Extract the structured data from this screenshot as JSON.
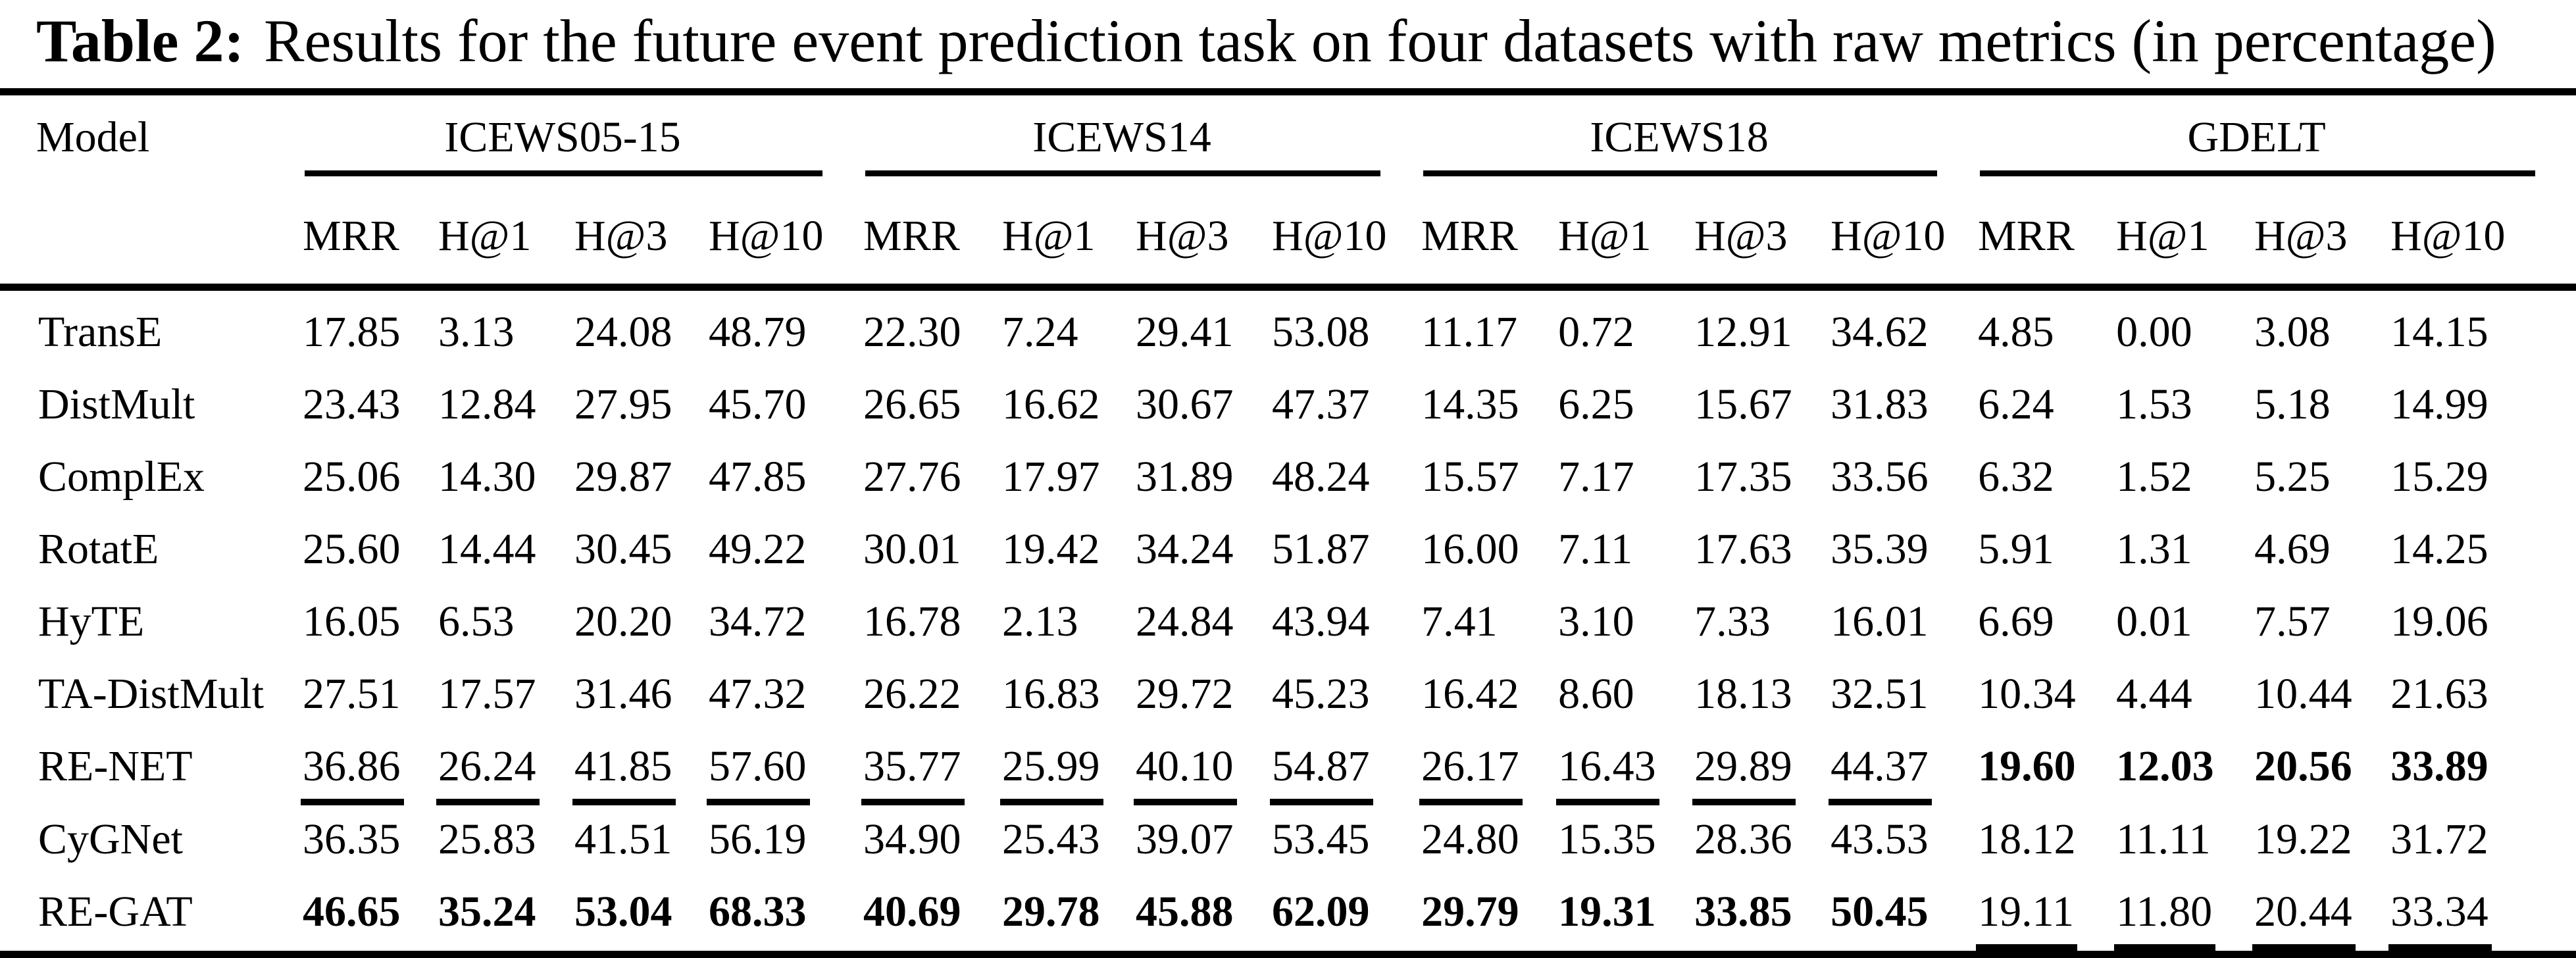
{
  "caption": {
    "label": "Table 2:",
    "text": "Results for the future event prediction task on four datasets with raw metrics (in percentage)"
  },
  "table": {
    "model_header": "Model",
    "groups": [
      "ICEWS05-15",
      "ICEWS14",
      "ICEWS18",
      "GDELT"
    ],
    "metrics": [
      "MRR",
      "H@1",
      "H@3",
      "H@10"
    ],
    "rows": [
      {
        "model": "TransE",
        "values": [
          "17.85",
          "3.13",
          "24.08",
          "48.79",
          "22.30",
          "7.24",
          "29.41",
          "53.08",
          "11.17",
          "0.72",
          "12.91",
          "34.62",
          "4.85",
          "0.00",
          "3.08",
          "14.15"
        ]
      },
      {
        "model": "DistMult",
        "values": [
          "23.43",
          "12.84",
          "27.95",
          "45.70",
          "26.65",
          "16.62",
          "30.67",
          "47.37",
          "14.35",
          "6.25",
          "15.67",
          "31.83",
          "6.24",
          "1.53",
          "5.18",
          "14.99"
        ]
      },
      {
        "model": "ComplEx",
        "values": [
          "25.06",
          "14.30",
          "29.87",
          "47.85",
          "27.76",
          "17.97",
          "31.89",
          "48.24",
          "15.57",
          "7.17",
          "17.35",
          "33.56",
          "6.32",
          "1.52",
          "5.25",
          "15.29"
        ]
      },
      {
        "model": "RotatE",
        "values": [
          "25.60",
          "14.44",
          "30.45",
          "49.22",
          "30.01",
          "19.42",
          "34.24",
          "51.87",
          "16.00",
          "7.11",
          "17.63",
          "35.39",
          "5.91",
          "1.31",
          "4.69",
          "14.25"
        ]
      },
      {
        "model": "HyTE",
        "values": [
          "16.05",
          "6.53",
          "20.20",
          "34.72",
          "16.78",
          "2.13",
          "24.84",
          "43.94",
          "7.41",
          "3.10",
          "7.33",
          "16.01",
          "6.69",
          "0.01",
          "7.57",
          "19.06"
        ]
      },
      {
        "model": "TA-DistMult",
        "values": [
          "27.51",
          "17.57",
          "31.46",
          "47.32",
          "26.22",
          "16.83",
          "29.72",
          "45.23",
          "16.42",
          "8.60",
          "18.13",
          "32.51",
          "10.34",
          "4.44",
          "10.44",
          "21.63"
        ]
      },
      {
        "model": "RE-NET",
        "values": [
          "36.86",
          "26.24",
          "41.85",
          "57.60",
          "35.77",
          "25.99",
          "40.10",
          "54.87",
          "26.17",
          "16.43",
          "29.89",
          "44.37",
          "19.60",
          "12.03",
          "20.56",
          "33.89"
        ],
        "cell_styles": [
          "u",
          "u",
          "u",
          "u",
          "u",
          "u",
          "u",
          "u",
          "u",
          "u",
          "u",
          "u",
          "b",
          "b",
          "b",
          "b"
        ]
      },
      {
        "model": "CyGNet",
        "values": [
          "36.35",
          "25.83",
          "41.51",
          "56.19",
          "34.90",
          "25.43",
          "39.07",
          "53.45",
          "24.80",
          "15.35",
          "28.36",
          "43.53",
          "18.12",
          "11.11",
          "19.22",
          "31.72"
        ]
      },
      {
        "model": "RE-GAT",
        "values": [
          "46.65",
          "35.24",
          "53.04",
          "68.33",
          "40.69",
          "29.78",
          "45.88",
          "62.09",
          "29.79",
          "19.31",
          "33.85",
          "50.45",
          "19.11",
          "11.80",
          "20.44",
          "33.34"
        ],
        "cell_styles": [
          "b",
          "b",
          "b",
          "b",
          "b",
          "b",
          "b",
          "b",
          "b",
          "b",
          "b",
          "b",
          "u",
          "u",
          "u",
          "u"
        ]
      }
    ]
  },
  "colors": {
    "text": "#000000",
    "background": "#ffffff",
    "rule": "#000000"
  }
}
